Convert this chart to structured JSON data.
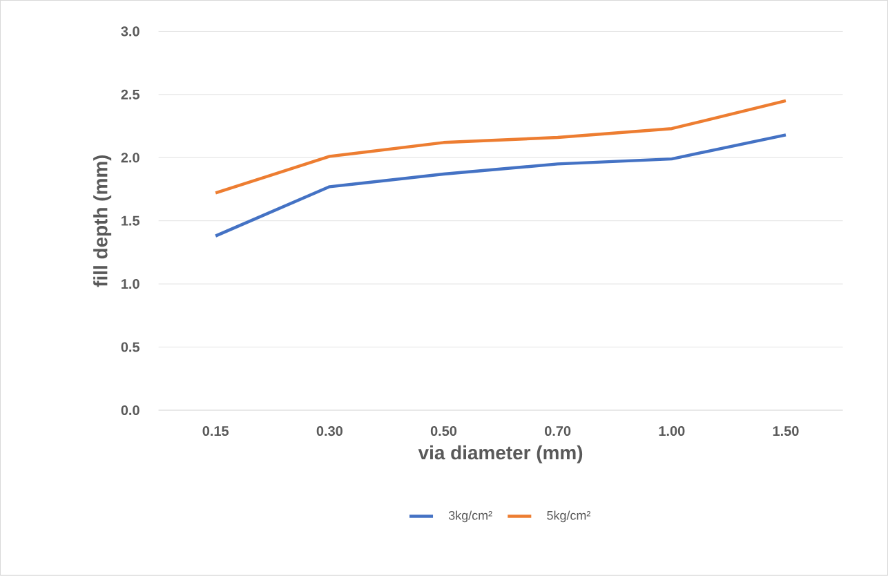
{
  "chart_data": {
    "type": "line",
    "xlabel": "via diameter (mm)",
    "ylabel": "fill depth (mm)",
    "categories": [
      "0.15",
      "0.30",
      "0.50",
      "0.70",
      "1.00",
      "1.50"
    ],
    "series": [
      {
        "name": "3kg/cm²",
        "color": "#4472c4",
        "values": [
          1.38,
          1.77,
          1.87,
          1.95,
          1.99,
          2.18
        ]
      },
      {
        "name": "5kg/cm²",
        "color": "#ed7d31",
        "values": [
          1.72,
          2.01,
          2.12,
          2.16,
          2.23,
          2.45
        ]
      }
    ],
    "ylim": [
      0,
      3
    ],
    "yticks": [
      {
        "value": 0,
        "label": "0.0"
      },
      {
        "value": 0.5,
        "label": "0.5"
      },
      {
        "value": 1,
        "label": "1.0"
      },
      {
        "value": 1.5,
        "label": "1.5"
      },
      {
        "value": 2,
        "label": "2.0"
      },
      {
        "value": 2.5,
        "label": "2.5"
      },
      {
        "value": 3,
        "label": "3.0"
      }
    ],
    "grid": "y",
    "legend": "bottom",
    "marker": "none",
    "line_style": "solid"
  }
}
